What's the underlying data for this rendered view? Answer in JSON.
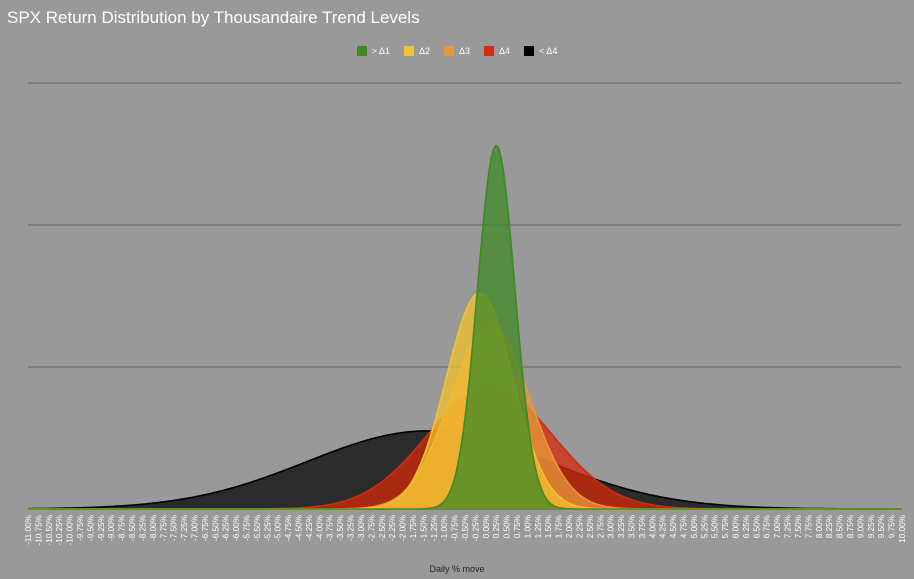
{
  "chart_data": {
    "type": "area",
    "title": "SPX Return Distribution by Thousandaire Trend Levels",
    "xlabel": "Daily % move",
    "ylabel": "",
    "x_range": [
      -11.0,
      10.0
    ],
    "x_step": 0.25,
    "ylim": [
      0,
      1.5
    ],
    "grid": true,
    "legend_position": "top",
    "series": [
      {
        "name": "< Δ4",
        "color": "#000000",
        "mean": -1.4,
        "std": 2.9,
        "peak": 0.275
      },
      {
        "name": "Δ4",
        "color": "#d42a0a",
        "mean": 0.1,
        "std": 1.5,
        "peak": 0.43
      },
      {
        "name": "Δ3",
        "color": "#e99838",
        "mean": 0.1,
        "std": 0.95,
        "peak": 0.65
      },
      {
        "name": "Δ2",
        "color": "#f2c22f",
        "mean": -0.15,
        "std": 0.8,
        "peak": 0.76
      },
      {
        "name": "> Δ1",
        "color": "#3f8a25",
        "mean": 0.25,
        "std": 0.45,
        "peak": 1.28
      }
    ],
    "legend_order": [
      "> Δ1",
      "Δ2",
      "Δ3",
      "Δ4",
      "< Δ4"
    ]
  }
}
